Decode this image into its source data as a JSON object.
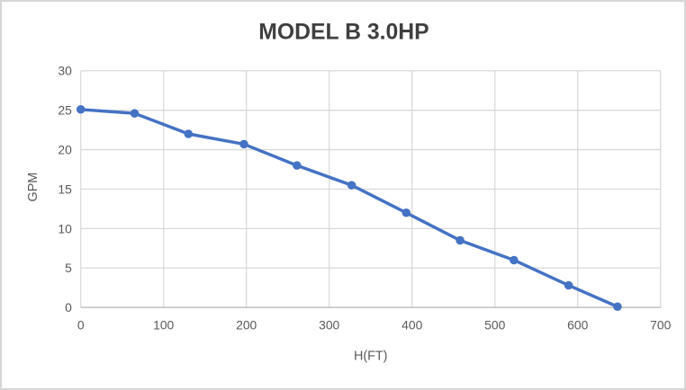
{
  "chart_data": {
    "type": "line",
    "title": "MODEL B 3.0HP",
    "xlabel": "H(FT)",
    "ylabel": "GPM",
    "x": [
      0,
      65,
      130,
      197,
      261,
      327,
      393,
      458,
      523,
      589,
      648
    ],
    "y": [
      25.1,
      24.6,
      22.0,
      20.7,
      18.0,
      15.5,
      12.0,
      8.5,
      6.0,
      2.8,
      0.1
    ],
    "xlim": [
      0,
      700
    ],
    "ylim": [
      0,
      30
    ],
    "x_ticks": [
      0,
      100,
      200,
      300,
      400,
      500,
      600,
      700
    ],
    "y_ticks": [
      0,
      5,
      10,
      15,
      20,
      25,
      30
    ],
    "grid": "both",
    "legend": "none",
    "marker": "circle",
    "colors": {
      "line": "#4472C4",
      "marker": "#4472C4",
      "grid": "#D9D9D9",
      "axis_line": "#BFBFBF",
      "tick_label": "#595959",
      "axis_title": "#595959",
      "title": "#3F3F3F",
      "background": "#FFFFFF",
      "border": "#D6D6D6"
    }
  }
}
